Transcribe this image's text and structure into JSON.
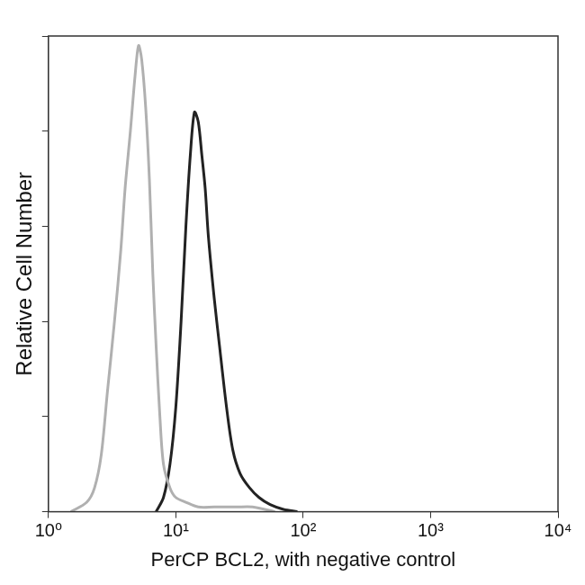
{
  "chart_data": {
    "type": "line",
    "x_label": "PerCP BCL2, with negative control",
    "y_label": "Relative Cell Number",
    "log": "x",
    "grid": false,
    "tick_labels": "x",
    "xlim": [
      1,
      10000
    ],
    "xticks": [
      {
        "value": 1,
        "label": "10⁰"
      },
      {
        "value": 10,
        "label": "10¹"
      },
      {
        "value": 100,
        "label": "10²"
      },
      {
        "value": 1000,
        "label": "10³"
      },
      {
        "value": 10000,
        "label": "10⁴"
      }
    ],
    "ylim": [
      0,
      100
    ],
    "yticks": [
      0,
      20,
      40,
      60,
      80,
      100
    ],
    "series": [
      {
        "color": "#b0b0b0",
        "marker": "none",
        "x": [
          1.5,
          2.0,
          2.3,
          2.6,
          2.9,
          3.3,
          3.7,
          4.0,
          4.4,
          4.8,
          5.1,
          5.4,
          5.8,
          6.2,
          6.6,
          7.0,
          7.5,
          8.0,
          9.0,
          10,
          12,
          15,
          20,
          30,
          40,
          60
        ],
        "values": [
          0,
          2,
          5,
          12,
          25,
          40,
          55,
          68,
          80,
          92,
          98,
          95,
          85,
          70,
          50,
          35,
          20,
          10,
          5,
          3,
          2,
          1,
          1,
          1,
          1,
          0
        ]
      },
      {
        "color": "#222222",
        "marker": "none",
        "x": [
          7,
          8,
          9,
          10,
          11,
          12,
          13,
          14,
          15,
          16,
          17,
          18,
          20,
          22,
          25,
          28,
          32,
          38,
          45,
          55,
          70,
          90
        ],
        "values": [
          0,
          3,
          10,
          22,
          40,
          60,
          75,
          84,
          82,
          75,
          68,
          58,
          45,
          35,
          22,
          13,
          8,
          5,
          3,
          1.5,
          0.5,
          0
        ]
      }
    ]
  }
}
